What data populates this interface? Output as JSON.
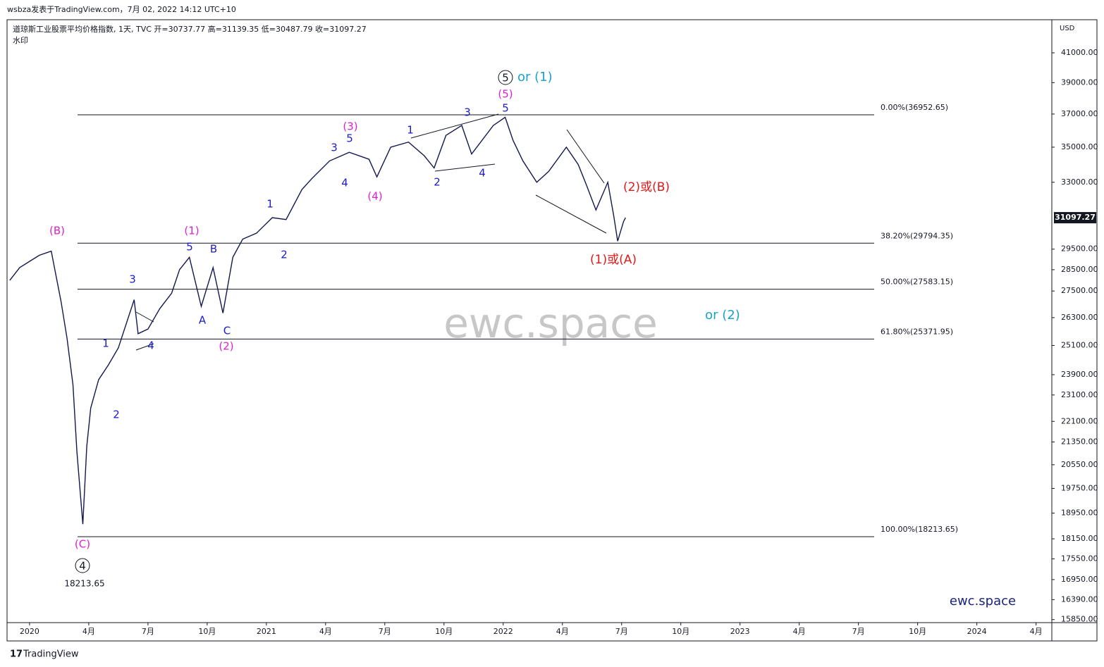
{
  "header": "wsbza发表于TradingView.com，7月 02, 2022 14:12 UTC+10",
  "legend": "道琼斯工业股票平均价格指数, 1天, TVC  开=30737.77  高=31139.35  低=30487.79  收=31097.27",
  "watermark_label": "水印",
  "currency": "USD",
  "footer": "TradingView",
  "chart_data": {
    "type": "line",
    "log_scale": true,
    "xlim": [
      -1.14,
      51.8
    ],
    "ylim": [
      15770,
      43340
    ],
    "xticks": [
      {
        "value": 0,
        "label": "2020"
      },
      {
        "value": 3,
        "label": "4月"
      },
      {
        "value": 6,
        "label": "7月"
      },
      {
        "value": 9,
        "label": "10月"
      },
      {
        "value": 12,
        "label": "2021"
      },
      {
        "value": 15,
        "label": "4月"
      },
      {
        "value": 18,
        "label": "7月"
      },
      {
        "value": 21,
        "label": "10月"
      },
      {
        "value": 24,
        "label": "2022"
      },
      {
        "value": 27,
        "label": "4月"
      },
      {
        "value": 30,
        "label": "7月"
      },
      {
        "value": 33,
        "label": "10月"
      },
      {
        "value": 36,
        "label": "2023"
      },
      {
        "value": 39,
        "label": "4月"
      },
      {
        "value": 42,
        "label": "7月"
      },
      {
        "value": 45,
        "label": "10月"
      },
      {
        "value": 48,
        "label": "2024"
      },
      {
        "value": 51,
        "label": "4月"
      }
    ],
    "yticks": [
      {
        "value": 41000,
        "label": "41000.00"
      },
      {
        "value": 39000,
        "label": "39000.00"
      },
      {
        "value": 37000,
        "label": "37000.00"
      },
      {
        "value": 35000,
        "label": "35000.00"
      },
      {
        "value": 33000,
        "label": "33000.00"
      },
      {
        "value": 29500,
        "label": "29500.00"
      },
      {
        "value": 28500,
        "label": "28500.00"
      },
      {
        "value": 27500,
        "label": "27500.00"
      },
      {
        "value": 26300,
        "label": "26300.00"
      },
      {
        "value": 25100,
        "label": "25100.00"
      },
      {
        "value": 23900,
        "label": "23900.00"
      },
      {
        "value": 23100,
        "label": "23100.00"
      },
      {
        "value": 22100,
        "label": "22100.00"
      },
      {
        "value": 21350,
        "label": "21350.00"
      },
      {
        "value": 20550,
        "label": "20550.00"
      },
      {
        "value": 19750,
        "label": "19750.00"
      },
      {
        "value": 18950,
        "label": "18950.00"
      },
      {
        "value": 18150,
        "label": "18150.00"
      },
      {
        "value": 17550,
        "label": "17550.00"
      },
      {
        "value": 16950,
        "label": "16950.00"
      },
      {
        "value": 16390,
        "label": "16390.00"
      },
      {
        "value": 15850,
        "label": "15850.00"
      }
    ],
    "last_price": 31097.27,
    "series": [
      {
        "name": "DJI",
        "color": "#131750",
        "x": [
          -1.0,
          -0.5,
          0.0,
          0.5,
          1.1,
          1.6,
          1.9,
          2.2,
          2.4,
          2.7,
          2.9,
          3.1,
          3.5,
          4.0,
          4.5,
          5.3,
          5.5,
          6.0,
          6.6,
          7.2,
          7.6,
          8.1,
          8.7,
          9.3,
          9.8,
          10.3,
          10.8,
          11.5,
          12.3,
          13.0,
          13.8,
          14.3,
          15.2,
          16.2,
          17.2,
          17.6,
          18.3,
          19.2,
          20.0,
          20.5,
          21.1,
          21.9,
          22.4,
          23.5,
          24.1,
          24.5,
          25.0,
          25.7,
          26.3,
          27.2,
          27.8,
          28.2,
          28.7,
          29.3,
          29.6,
          29.8,
          30.1,
          30.2
        ],
        "values": [
          28000,
          28600,
          28900,
          29200,
          29400,
          27000,
          25400,
          23500,
          21000,
          18600,
          21200,
          22600,
          23700,
          24300,
          25000,
          27100,
          25600,
          25800,
          26700,
          27400,
          28500,
          29100,
          26800,
          28600,
          26500,
          29100,
          30000,
          30300,
          31100,
          31000,
          32600,
          33200,
          34200,
          34700,
          34300,
          33300,
          35000,
          35300,
          34500,
          33800,
          35700,
          36300,
          34600,
          36300,
          36800,
          35400,
          34200,
          33000,
          33600,
          35000,
          34000,
          32900,
          31500,
          33000,
          31200,
          29900,
          30900,
          31097.27
        ]
      }
    ],
    "fib_start": 2.43,
    "fib_end": 42.8,
    "fib_levels": [
      {
        "value": 36952.65,
        "label": "0.00%(36952.65)"
      },
      {
        "value": 29794.35,
        "label": "38.20%(29794.35)"
      },
      {
        "value": 27583.15,
        "label": "50.00%(27583.15)"
      },
      {
        "value": 25371.95,
        "label": "61.80%(25371.95)"
      },
      {
        "value": 18213.65,
        "label": "100.00%(18213.65)"
      }
    ],
    "annotations": [
      "(B)",
      "(C)",
      "4",
      "18213.65",
      "3",
      "1",
      "2",
      "4",
      "5",
      "(1)",
      "A",
      "B",
      "C",
      "(2)",
      "1",
      "2",
      "3",
      "4",
      "5",
      "(3)",
      "(4)",
      "1",
      "2",
      "3",
      "4",
      "5",
      "(5)",
      "5",
      "or (1)",
      "(2)或(B)",
      "(1)或(A)",
      "or (2)",
      "ewc.space",
      "ewc.space"
    ]
  }
}
